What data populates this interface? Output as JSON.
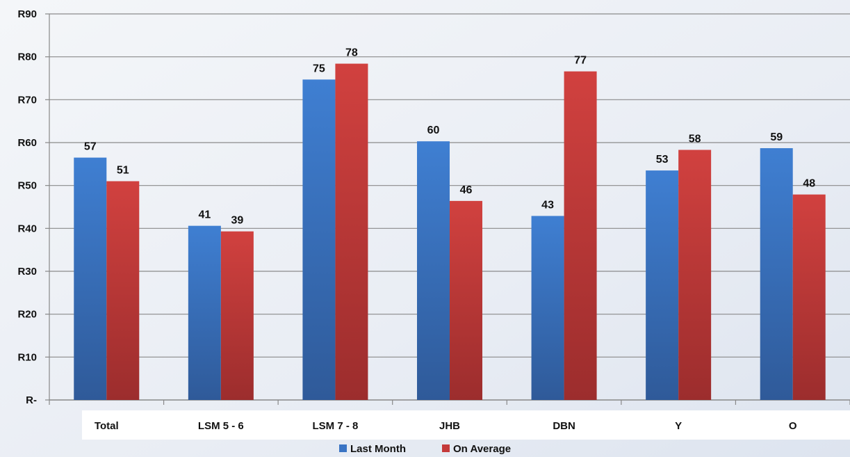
{
  "chart_data": {
    "type": "bar",
    "categories": [
      "Total",
      "LSM 5 - 6",
      "LSM 7 - 8",
      "JHB",
      "DBN",
      "Y",
      "O"
    ],
    "series": [
      {
        "name": "Last Month",
        "values": [
          57,
          41,
          75,
          60,
          43,
          53,
          59
        ],
        "color": "#3a74c4"
      },
      {
        "name": "On Average",
        "values": [
          51,
          39,
          78,
          46,
          77,
          58,
          48
        ],
        "color": "#c43a3a"
      }
    ],
    "bar_values": [
      [
        56.5,
        40.6,
        74.7,
        60.3,
        42.9,
        53.5,
        58.7
      ],
      [
        51.0,
        39.3,
        78.4,
        46.4,
        76.6,
        58.3,
        47.9
      ]
    ],
    "y_tick_labels": [
      "R-",
      "R10",
      "R20",
      "R30",
      "R40",
      "R50",
      "R60",
      "R70",
      "R80",
      "R90"
    ],
    "ylim": [
      0,
      90
    ],
    "grid": true,
    "legend_position": "bottom",
    "title": "",
    "xlabel": "",
    "ylabel": ""
  }
}
